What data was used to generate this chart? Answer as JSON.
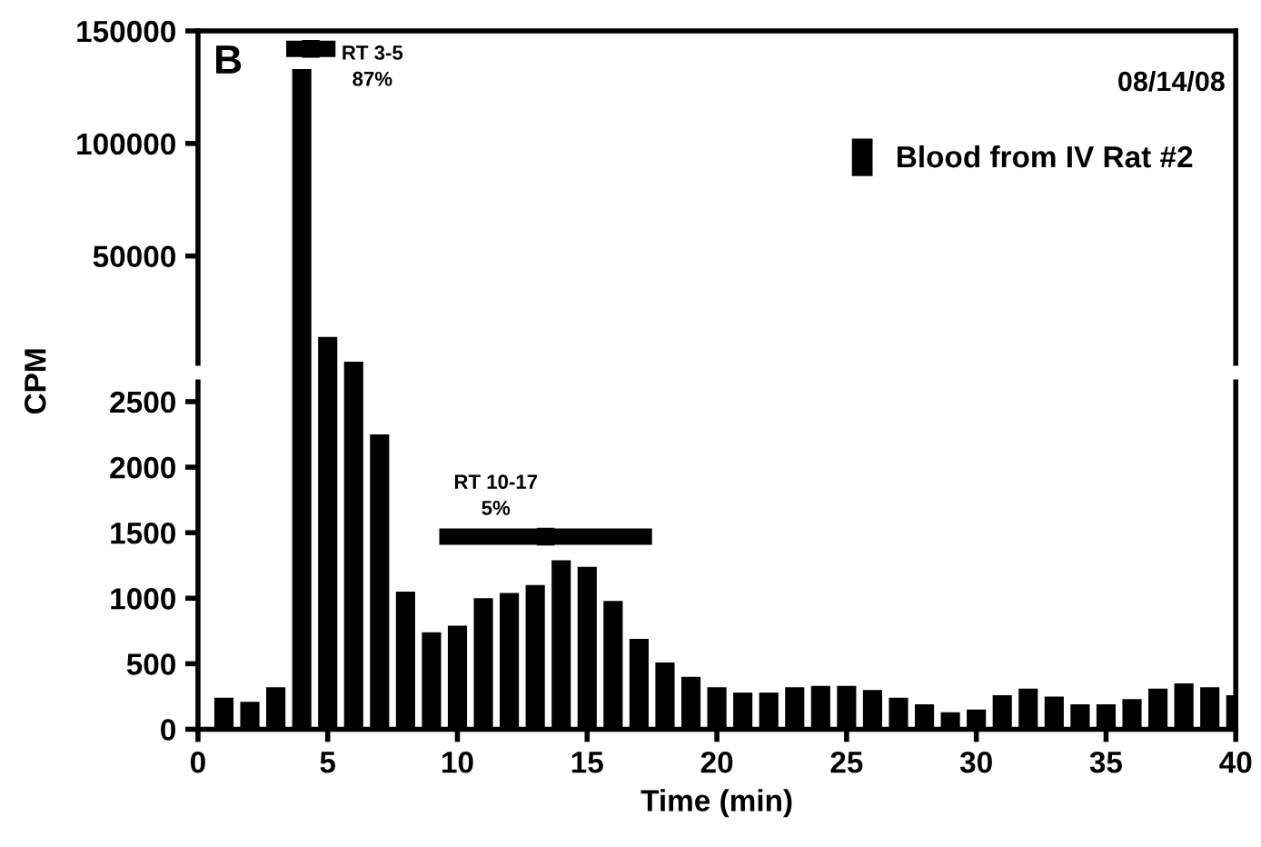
{
  "chart_data": [
    {
      "type": "bar",
      "x": [
        4,
        5,
        6
      ],
      "series": [
        {
          "name": "Blood from IV Rat #2",
          "color": "#000000",
          "values": [
            133000,
            14000,
            3000
          ]
        },
        {
          "type": "scatter",
          "color": "#000000",
          "marker": "square",
          "x": [
            4.35
          ],
          "values": [
            142000
          ],
          "xerrors": [
            [
              3.4,
              5.3
            ]
          ]
        }
      ],
      "xlim": [
        0,
        40
      ],
      "xticks": [
        0,
        5,
        10,
        15,
        20,
        25,
        30,
        35,
        40
      ],
      "ylim": [
        2300,
        150000
      ],
      "yticks": [
        50000,
        100000,
        150000
      ],
      "tick_labels": "y",
      "legend": "right",
      "grid": false,
      "annotations": [
        "B",
        "08/14/08",
        "RT 3-5\n87%"
      ]
    },
    {
      "type": "bar",
      "x": [
        1,
        2,
        3,
        7,
        8,
        9,
        10,
        11,
        12,
        13,
        14,
        15,
        16,
        17,
        18,
        19,
        20,
        21,
        22,
        23,
        24,
        25,
        26,
        27,
        28,
        29,
        30,
        31,
        32,
        33,
        34,
        35,
        36,
        37,
        38,
        39,
        40
      ],
      "series": [
        {
          "color": "#000000",
          "values": [
            240,
            210,
            320,
            2250,
            1050,
            740,
            790,
            1000,
            1040,
            1100,
            1290,
            1240,
            980,
            690,
            510,
            400,
            320,
            280,
            280,
            320,
            330,
            330,
            300,
            240,
            190,
            130,
            150,
            260,
            310,
            250,
            190,
            190,
            230,
            310,
            350,
            320,
            260
          ]
        },
        {
          "type": "scatter",
          "color": "#000000",
          "marker": "square",
          "x": [
            13.4
          ],
          "values": [
            1470
          ],
          "xerrors": [
            [
              9.3,
              17.5
            ]
          ]
        }
      ],
      "xlim": [
        0,
        40
      ],
      "xticks": [
        0,
        5,
        10,
        15,
        20,
        25,
        30,
        35,
        40
      ],
      "ylim": [
        0,
        2650
      ],
      "yticks": [
        0,
        500,
        1000,
        1500,
        2000,
        2500
      ],
      "xlabel": "Time (min)",
      "ylabel": "CPM",
      "grid": false,
      "annotations": [
        "RT 10-17\n5%"
      ]
    }
  ]
}
